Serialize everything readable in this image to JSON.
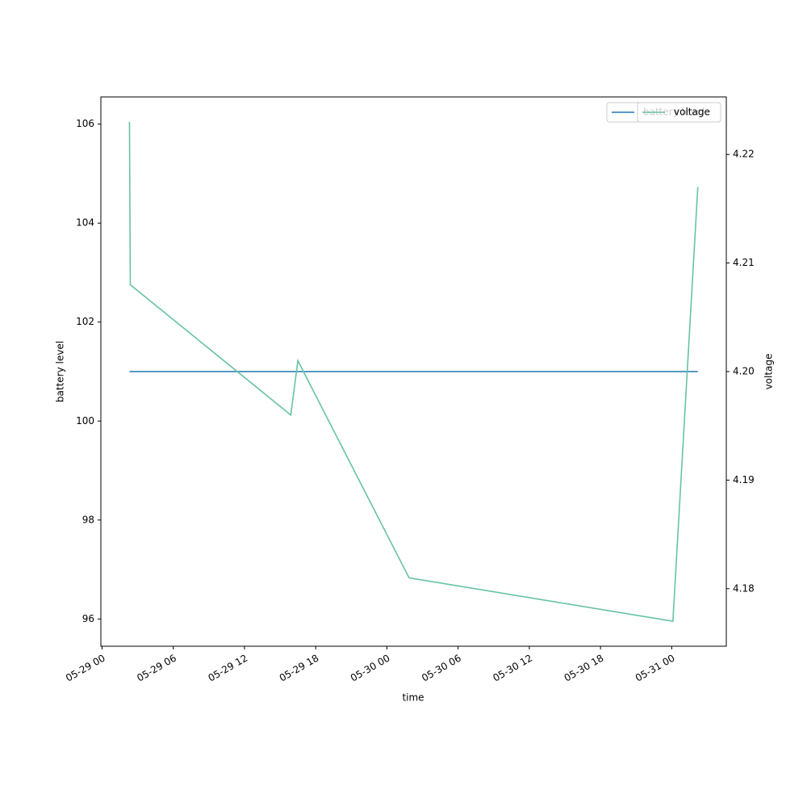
{
  "chart_data": {
    "type": "line",
    "xlabel": "time",
    "ylabel": "battery level",
    "y2label": "voltage",
    "x": [
      2.31,
      2.38,
      15.9,
      16.5,
      25.87,
      48.1,
      50.2
    ],
    "xlim": [
      -0.1,
      52.6
    ],
    "xticks": [
      {
        "value": 0,
        "label": "05-29 00"
      },
      {
        "value": 6,
        "label": "05-29 06"
      },
      {
        "value": 12,
        "label": "05-29 12"
      },
      {
        "value": 18,
        "label": "05-29 18"
      },
      {
        "value": 24,
        "label": "05-30 00"
      },
      {
        "value": 30,
        "label": "05-30 06"
      },
      {
        "value": 36,
        "label": "05-30 12"
      },
      {
        "value": 42,
        "label": "05-30 18"
      },
      {
        "value": 48,
        "label": "05-31 00"
      }
    ],
    "ylim": [
      95.45,
      106.55
    ],
    "yticks": [
      96,
      98,
      100,
      102,
      104,
      106
    ],
    "y2lim": [
      4.1747,
      4.2253
    ],
    "y2ticks": [
      4.18,
      4.19,
      {
        "value": 4.2,
        "label": "4.20"
      },
      4.21,
      4.22
    ],
    "series": [
      {
        "name": "battery level",
        "color": "#1f77b4",
        "values": [
          101,
          101,
          101,
          101,
          101,
          101,
          101
        ]
      },
      {
        "name": "voltage",
        "color": "#66c2a5",
        "axis": "y2",
        "values": [
          4.223,
          4.208,
          4.196,
          4.201,
          4.181,
          4.177,
          4.217
        ]
      }
    ],
    "legend": "upper right",
    "grid": false
  }
}
